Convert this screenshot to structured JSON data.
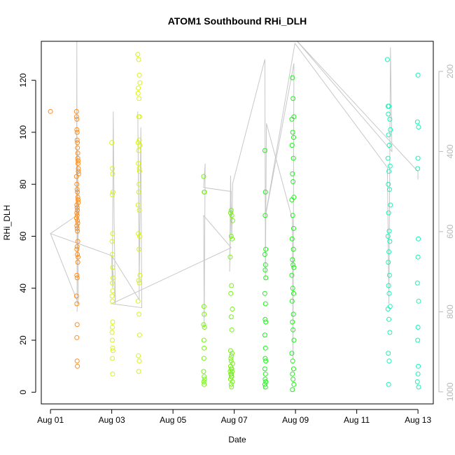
{
  "chart_data": {
    "type": "scatter",
    "title": "ATOM1 Southbound RHi_DLH",
    "xlabel": "Date",
    "ylabel": "RHi_DLH",
    "x_ticks": [
      "Aug 01",
      "Aug 03",
      "Aug 05",
      "Aug 07",
      "Aug 09",
      "Aug 11",
      "Aug 13"
    ],
    "x_tick_values": [
      1,
      3,
      5,
      7,
      9,
      11,
      13
    ],
    "xlim": [
      0.7,
      13.5
    ],
    "ylim": [
      -4.5,
      135
    ],
    "y_ticks": [
      0,
      20,
      40,
      60,
      80,
      100,
      120
    ],
    "y2_axis": {
      "label": "",
      "ticks": [
        200,
        400,
        600,
        800,
        1000
      ],
      "lim": [
        1030,
        125
      ],
      "color": "#b8b8b8"
    },
    "grid": false,
    "legend": "none",
    "marker": "open-circle",
    "pressure_trace": {
      "color": "#c8c8c8",
      "x": [
        1.0,
        1.85,
        1.86,
        1.87,
        1.89,
        1.91,
        1.0,
        3.0,
        3.02,
        3.05,
        3.08,
        3.12,
        3.0,
        3.9,
        3.88,
        3.85,
        3.9,
        3.95,
        3.98,
        3.0,
        6.9,
        6.0,
        6.02,
        6.05,
        6.0,
        6.9,
        6.85,
        6.88,
        6.92,
        6.95,
        8.0,
        8.02,
        8.05,
        8.9,
        8.92,
        8.95,
        8.0,
        8.98,
        12.0,
        12.05,
        12.1,
        12.15,
        9.0,
        13.0,
        13.0
      ],
      "y": [
        605,
        560,
        120,
        800,
        400,
        780,
        605,
        660,
        740,
        300,
        580,
        780,
        660,
        770,
        500,
        300,
        720,
        340,
        790,
        780,
        640,
        560,
        840,
        430,
        490,
        500,
        700,
        460,
        620,
        480,
        170,
        720,
        330,
        570,
        920,
        180,
        570,
        130,
        440,
        780,
        140,
        400,
        120,
        450,
        470
      ]
    },
    "series": [
      {
        "color": "#ff8c1a",
        "x": [
          1.0,
          1.85,
          1.85,
          1.86,
          1.86,
          1.87,
          1.87,
          1.88,
          1.88,
          1.89,
          1.89,
          1.9,
          1.9,
          1.91,
          1.91,
          1.92,
          1.85,
          1.86,
          1.87,
          1.88,
          1.89,
          1.9,
          1.91,
          1.86,
          1.87,
          1.88,
          1.86,
          1.87,
          1.85,
          1.88,
          1.89,
          1.86,
          1.87,
          1.88,
          1.89,
          1.87,
          1.86,
          1.88,
          1.9,
          1.89,
          1.86,
          1.87,
          1.85,
          1.86,
          1.87,
          1.86,
          1.87,
          1.88
        ],
        "y": [
          108,
          108,
          106,
          105,
          101,
          100,
          97,
          96,
          94,
          92,
          90,
          89,
          88,
          86,
          85,
          84,
          83,
          80,
          78,
          77,
          75,
          74,
          73,
          72,
          71,
          70,
          69,
          68,
          67,
          66,
          65,
          64,
          63,
          62,
          58,
          56,
          55,
          53,
          52,
          50,
          45,
          44,
          37,
          34,
          26,
          21,
          12,
          10
        ]
      },
      {
        "color": "#d8f21a",
        "x": [
          3.0,
          3.02,
          3.03,
          3.04,
          3.02,
          3.03,
          3.01,
          3.02,
          3.03,
          3.04,
          3.02,
          3.03,
          3.01,
          3.02,
          3.03,
          3.02,
          3.01,
          3.02,
          3.03,
          3.04,
          3.02,
          3.03,
          3.85,
          3.88,
          3.9,
          3.92,
          3.87,
          3.86,
          3.89,
          3.91,
          3.88,
          3.9,
          3.86,
          3.92,
          3.88,
          3.87,
          3.9,
          3.91,
          3.89,
          3.88,
          3.86,
          3.9,
          3.87,
          3.91,
          3.89,
          3.92,
          3.88,
          3.9,
          3.86,
          3.89,
          3.91,
          3.87,
          3.9,
          3.88
        ],
        "y": [
          96,
          86,
          84,
          77,
          76,
          61,
          58,
          53,
          48,
          44,
          42,
          39,
          37,
          35,
          27,
          25,
          23,
          20,
          17,
          16,
          13,
          7,
          130,
          128,
          122,
          119,
          117,
          115,
          113,
          106,
          106,
          97,
          96,
          95,
          93,
          88,
          86,
          85,
          80,
          77,
          72,
          70,
          61,
          60,
          55,
          45,
          43,
          42,
          35,
          30,
          22,
          14,
          12,
          8
        ]
      },
      {
        "color": "#78f21a",
        "x": [
          6.0,
          6.02,
          6.03,
          6.01,
          6.02,
          6.0,
          6.03,
          6.01,
          6.02,
          6.01,
          6.0,
          6.02,
          6.03,
          6.01,
          6.02,
          6.9,
          6.88,
          6.92,
          6.95,
          6.9,
          6.93,
          6.87,
          6.91,
          6.89,
          6.94,
          6.9,
          6.92,
          6.88,
          6.93,
          6.91,
          6.89,
          6.9,
          6.95,
          6.88,
          6.92,
          6.9,
          6.87,
          6.93,
          6.91,
          6.89,
          6.9,
          6.92,
          6.88,
          6.94,
          6.9,
          6.91
        ],
        "y": [
          83,
          77,
          77,
          33,
          30,
          26,
          25,
          20,
          17,
          13,
          8,
          6,
          5,
          4,
          3,
          70,
          69,
          68,
          66,
          60,
          59,
          52,
          41,
          38,
          32,
          29,
          24,
          16,
          15,
          14,
          13,
          12,
          11,
          10,
          9,
          9,
          8,
          8,
          7,
          7,
          6,
          6,
          5,
          4,
          3,
          2
        ]
      },
      {
        "color": "#1ef21a",
        "x": [
          8.0,
          8.02,
          8.01,
          8.03,
          8.0,
          8.02,
          8.01,
          8.03,
          8.0,
          8.02,
          8.01,
          8.03,
          8.0,
          8.02,
          8.01,
          8.03,
          8.0,
          8.02,
          8.01,
          8.03,
          8.0,
          8.02,
          8.9,
          8.92,
          8.95,
          8.88,
          8.91,
          8.94,
          8.89,
          8.93,
          8.9,
          8.92,
          8.95,
          8.88,
          8.91,
          8.94,
          8.89,
          8.93,
          8.9,
          8.92,
          8.95,
          8.88,
          8.91,
          8.94,
          8.89,
          8.93,
          8.9,
          8.92,
          8.95,
          8.88,
          8.91,
          8.94,
          8.9,
          8.92,
          8.95,
          8.9
        ],
        "y": [
          93,
          77,
          68,
          55,
          53,
          49,
          47,
          44,
          38,
          34,
          28,
          27,
          22,
          17,
          13,
          12,
          9,
          7,
          5,
          4,
          3,
          2,
          121,
          113,
          106,
          105,
          100,
          98,
          95,
          90,
          84,
          81,
          75,
          74,
          68,
          63,
          59,
          55,
          51,
          49,
          48,
          45,
          40,
          38,
          35,
          30,
          27,
          24,
          20,
          15,
          12,
          9,
          7,
          5,
          3,
          1
        ]
      },
      {
        "color": "#1af2b4",
        "x": [
          12.0,
          12.02,
          12.05,
          12.03,
          12.08,
          12.1,
          12.04,
          12.06,
          12.02,
          12.09,
          12.05,
          12.03,
          12.07,
          12.1,
          12.04,
          12.06,
          12.02,
          12.08,
          12.05,
          12.03,
          12.07,
          12.04,
          12.06,
          12.09,
          12.02,
          12.05,
          12.08,
          12.03,
          12.06,
          12.04,
          13.0,
          12.98,
          13.02,
          13.0,
          12.99,
          13.01,
          13.0,
          12.98,
          13.02,
          13.0,
          12.99,
          13.01,
          13.0,
          12.98,
          13.02
        ],
        "y": [
          128,
          110,
          110,
          107,
          105,
          101,
          99,
          95,
          90,
          87,
          85,
          80,
          78,
          72,
          69,
          62,
          60,
          58,
          54,
          50,
          45,
          41,
          38,
          33,
          32,
          28,
          23,
          15,
          12,
          3,
          122,
          104,
          102,
          90,
          86,
          59,
          52,
          42,
          35,
          25,
          20,
          10,
          7,
          4,
          2
        ]
      }
    ]
  }
}
